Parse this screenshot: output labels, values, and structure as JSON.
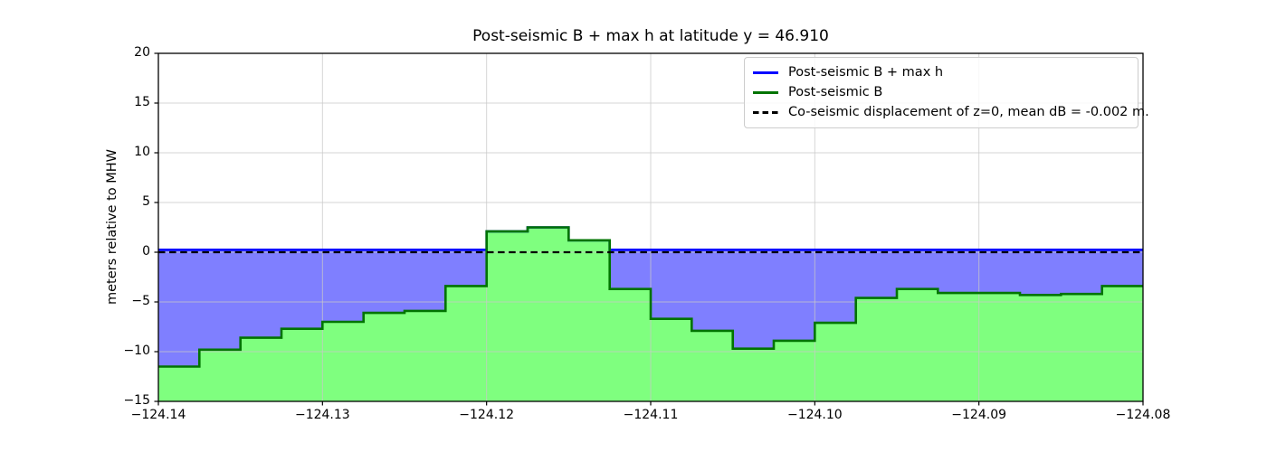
{
  "chart_data": {
    "type": "area",
    "title": "Post-seismic B + max h at latitude y = 46.910",
    "ylabel": "meters relative to MHW",
    "xlabel": "",
    "xlim": [
      -124.14,
      -124.08
    ],
    "ylim": [
      -15,
      20
    ],
    "grid": true,
    "grid_color": "#c8c8c8",
    "legend_position": "upper right",
    "cell_edges_lon": [
      -124.14,
      -124.1375,
      -124.135,
      -124.1325,
      -124.13,
      -124.1275,
      -124.125,
      -124.1225,
      -124.12,
      -124.1175,
      -124.115,
      -124.1125,
      -124.11,
      -124.1075,
      -124.105,
      -124.1025,
      -124.1,
      -124.0975,
      -124.095,
      -124.0925,
      -124.09,
      -124.0875,
      -124.085,
      -124.0825,
      -124.08
    ],
    "series": [
      {
        "name": "Post-seismic B + max h",
        "color": "#0000ff",
        "line_style": "solid",
        "fill_color": "#0000ff",
        "fill_alpha": 0.5,
        "values": [
          0.25,
          0.25,
          0.25,
          0.25,
          0.25,
          0.25,
          0.25,
          0.25,
          2.1,
          2.5,
          1.2,
          0.25,
          0.25,
          0.25,
          0.25,
          0.25,
          0.25,
          0.25,
          0.25,
          0.25,
          0.25,
          0.25,
          0.25,
          0.25
        ]
      },
      {
        "name": "Post-seismic B",
        "color": "#007400",
        "line_style": "solid",
        "fill_color": "#00ff00",
        "fill_alpha": 0.5,
        "values": [
          -11.5,
          -9.8,
          -8.6,
          -7.7,
          -7.0,
          -6.1,
          -5.9,
          -3.4,
          2.1,
          2.5,
          1.2,
          -3.7,
          -6.7,
          -7.9,
          -9.7,
          -8.9,
          -7.1,
          -4.6,
          -3.7,
          -4.1,
          -4.1,
          -4.3,
          -4.2,
          -3.4
        ]
      },
      {
        "name": "Co-seismic displacement of z=0, mean dB = -0.002 m.",
        "color": "#000000",
        "line_style": "dashed",
        "value": 0.0
      }
    ],
    "xticks": {
      "values": [
        -124.14,
        -124.13,
        -124.12,
        -124.11,
        -124.1,
        -124.09,
        -124.08
      ],
      "labels": [
        "−124.14",
        "−124.13",
        "−124.12",
        "−124.11",
        "−124.10",
        "−124.09",
        "−124.08"
      ]
    },
    "yticks": {
      "values": [
        20,
        15,
        10,
        5,
        0,
        -5,
        -10,
        -15
      ],
      "labels": [
        "20",
        "15",
        "10",
        "5",
        "0",
        "−5",
        "−10",
        "−15"
      ]
    }
  },
  "legend": {
    "items": [
      {
        "label": "Post-seismic B + max h",
        "color": "#0000ff",
        "style": "solid"
      },
      {
        "label": "Post-seismic B",
        "color": "#007400",
        "style": "solid"
      },
      {
        "label": "Co-seismic displacement of z=0, mean dB = -0.002 m.",
        "color": "#000000",
        "style": "dashed"
      }
    ]
  }
}
